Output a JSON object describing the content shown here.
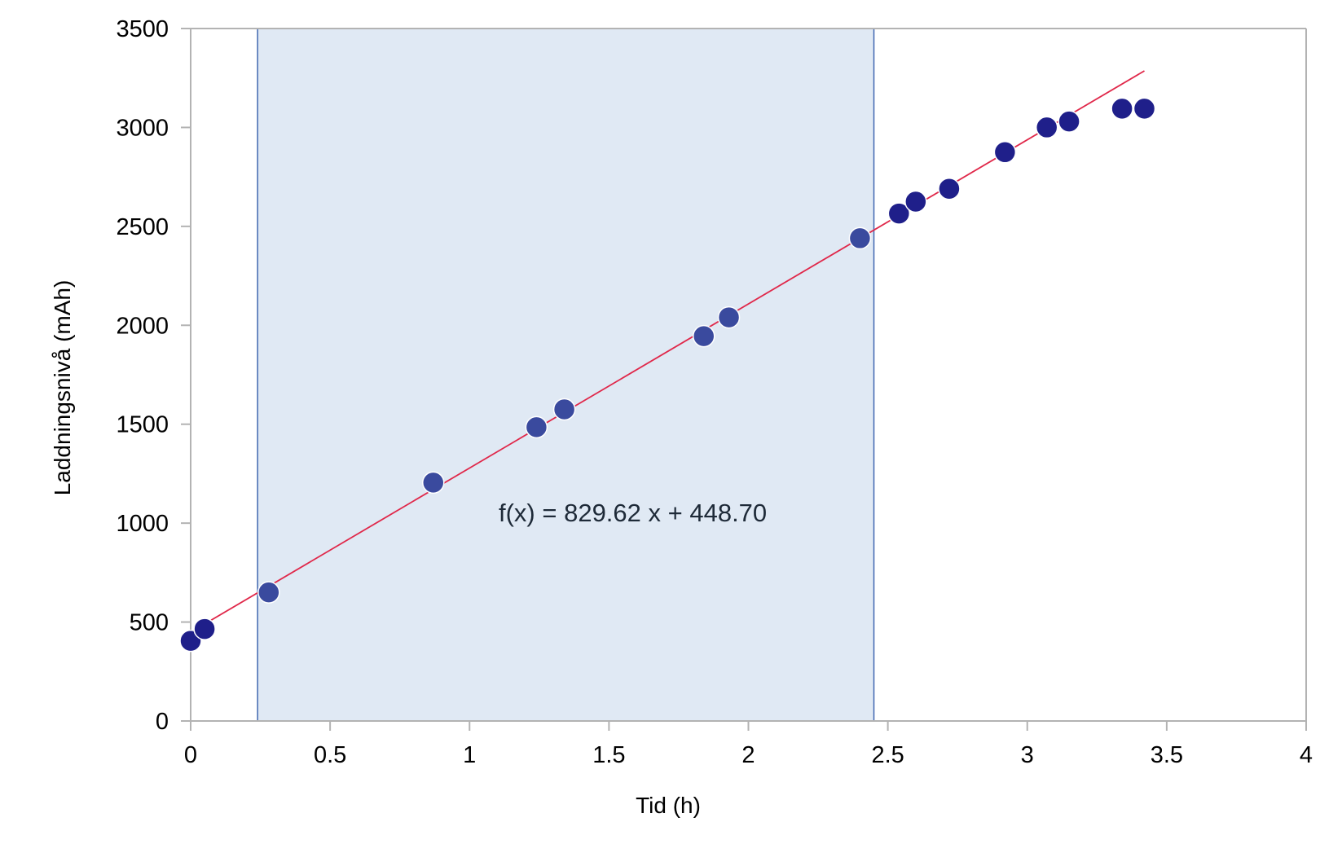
{
  "chart_data": {
    "type": "scatter",
    "xlabel": "Tid (h)",
    "ylabel": "Laddningsnivå (mAh)",
    "xlim": [
      0,
      4
    ],
    "ylim": [
      0,
      3500
    ],
    "x_ticks": [
      "0",
      "0.5",
      "1",
      "1.5",
      "2",
      "2.5",
      "3",
      "3.5",
      "4"
    ],
    "y_ticks": [
      "0",
      "500",
      "1000",
      "1500",
      "2000",
      "2500",
      "3000",
      "3500"
    ],
    "grid": false,
    "highlight_range": {
      "x_start": 0.24,
      "x_end": 2.45
    },
    "points": [
      {
        "x": 0.0,
        "y": 405
      },
      {
        "x": 0.05,
        "y": 465
      },
      {
        "x": 0.28,
        "y": 650
      },
      {
        "x": 0.87,
        "y": 1205
      },
      {
        "x": 1.24,
        "y": 1485
      },
      {
        "x": 1.34,
        "y": 1575
      },
      {
        "x": 1.84,
        "y": 1945
      },
      {
        "x": 1.93,
        "y": 2040
      },
      {
        "x": 2.4,
        "y": 2440
      },
      {
        "x": 2.54,
        "y": 2565
      },
      {
        "x": 2.6,
        "y": 2625
      },
      {
        "x": 2.72,
        "y": 2690
      },
      {
        "x": 2.92,
        "y": 2875
      },
      {
        "x": 3.07,
        "y": 3000
      },
      {
        "x": 3.15,
        "y": 3030
      },
      {
        "x": 3.34,
        "y": 3095
      },
      {
        "x": 3.42,
        "y": 3095
      }
    ],
    "trendline": {
      "slope": 829.62,
      "intercept": 448.7,
      "x_range": [
        0,
        3.42
      ]
    },
    "annotation": "f(x) = 829.62 x + 448.70",
    "colors": {
      "point": "#1f1f8a",
      "point_highlighted": "#3a4a9e",
      "trendline": "#e0284a",
      "highlight_fill": "#e0e9f4",
      "highlight_stroke": "#3f66b0",
      "axis": "#b3b3b3"
    }
  }
}
